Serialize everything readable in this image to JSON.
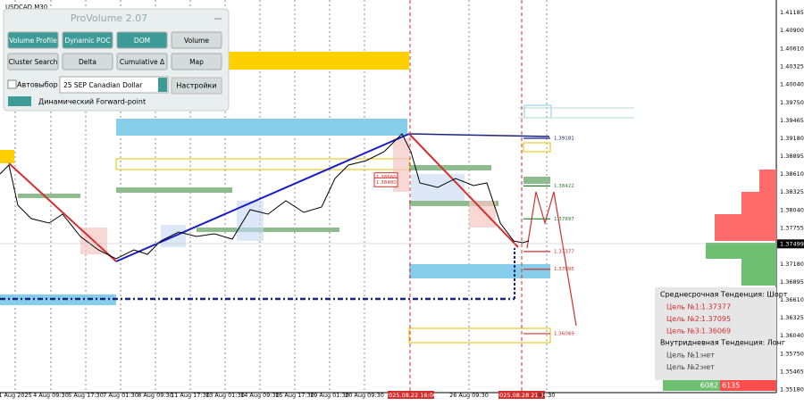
{
  "symbol": "USDCAD,M30",
  "panel": {
    "title": "ProVolume 2.07",
    "buttons": [
      "Volume Profile",
      "Dynamic POC",
      "DOM",
      "Volume",
      "Cluster Search",
      "Delta",
      "Cumulative Δ",
      "Map"
    ],
    "auto_select": "Автовыбор",
    "contract": "25 SEP Canadian Dollar",
    "settings": "Настройки",
    "forward_point": "Динамический Forward-point"
  },
  "price_axis": {
    "labels": [
      "1.41185",
      "1.40900",
      "1.40610",
      "1.40325",
      "1.40040",
      "1.39750",
      "1.39465",
      "1.39180",
      "1.38895",
      "1.38610",
      "1.38325",
      "1.38040",
      "1.37755",
      "1.37180",
      "1.36895",
      "1.36610",
      "1.36325",
      "1.36040",
      "1.35750",
      "1.35465",
      "1.35180"
    ],
    "current": "1.37499"
  },
  "time_axis": {
    "labels": [
      {
        "text": "1 Aug 2025",
        "highlight": false
      },
      {
        "text": "4 Aug 09:30",
        "highlight": false
      },
      {
        "text": "5 Aug 17:30",
        "highlight": false
      },
      {
        "text": "7 Aug 01:30",
        "highlight": false
      },
      {
        "text": "8 Aug 09:30",
        "highlight": false
      },
      {
        "text": "11 Aug 17:30",
        "highlight": false
      },
      {
        "text": "13 Aug 01:30",
        "highlight": false
      },
      {
        "text": "14 Aug 09:30",
        "highlight": false
      },
      {
        "text": "15 Aug 17:30",
        "highlight": false
      },
      {
        "text": "19 Aug 01:30",
        "highlight": false
      },
      {
        "text": "20 Aug 09:30",
        "highlight": false
      },
      {
        "text": "2025.08.22 16:00",
        "highlight": true
      },
      {
        "text": "26 Aug 09:30",
        "highlight": false
      },
      {
        "text": "2025.08.28 21:30",
        "highlight": true
      },
      {
        "text": "01:30",
        "highlight": false
      }
    ]
  },
  "levels": [
    {
      "text": "1.39181",
      "color": "#1a237e"
    },
    {
      "text": "1.38422",
      "color": "#2e7d32"
    },
    {
      "text": "1.37897",
      "color": "#2e7d32"
    },
    {
      "text": "1.37377",
      "color": "#d32f2f"
    },
    {
      "text": "1.37095",
      "color": "#d32f2f"
    },
    {
      "text": "1.36069",
      "color": "#d32f2f"
    },
    {
      "text": "1.38560",
      "color": "#d32f2f"
    },
    {
      "text": "1.38480",
      "color": "#d32f2f"
    }
  ],
  "info": {
    "medium_term": "Среднесрочная Тенденция: Шорт",
    "targets": [
      {
        "label": "Цель №1:",
        "value": "1.37377"
      },
      {
        "label": "Цель №2:",
        "value": "1.37095"
      },
      {
        "label": "Цель №3:",
        "value": "1.36069"
      }
    ],
    "intraday": "Внутридневная Тенденция: Лонг",
    "intraday_targets": [
      {
        "label": "Цель №1:",
        "value": "нет"
      },
      {
        "label": "Цель №2:",
        "value": "нет"
      }
    ]
  },
  "volume_footer": [
    "6082",
    "6135"
  ]
}
